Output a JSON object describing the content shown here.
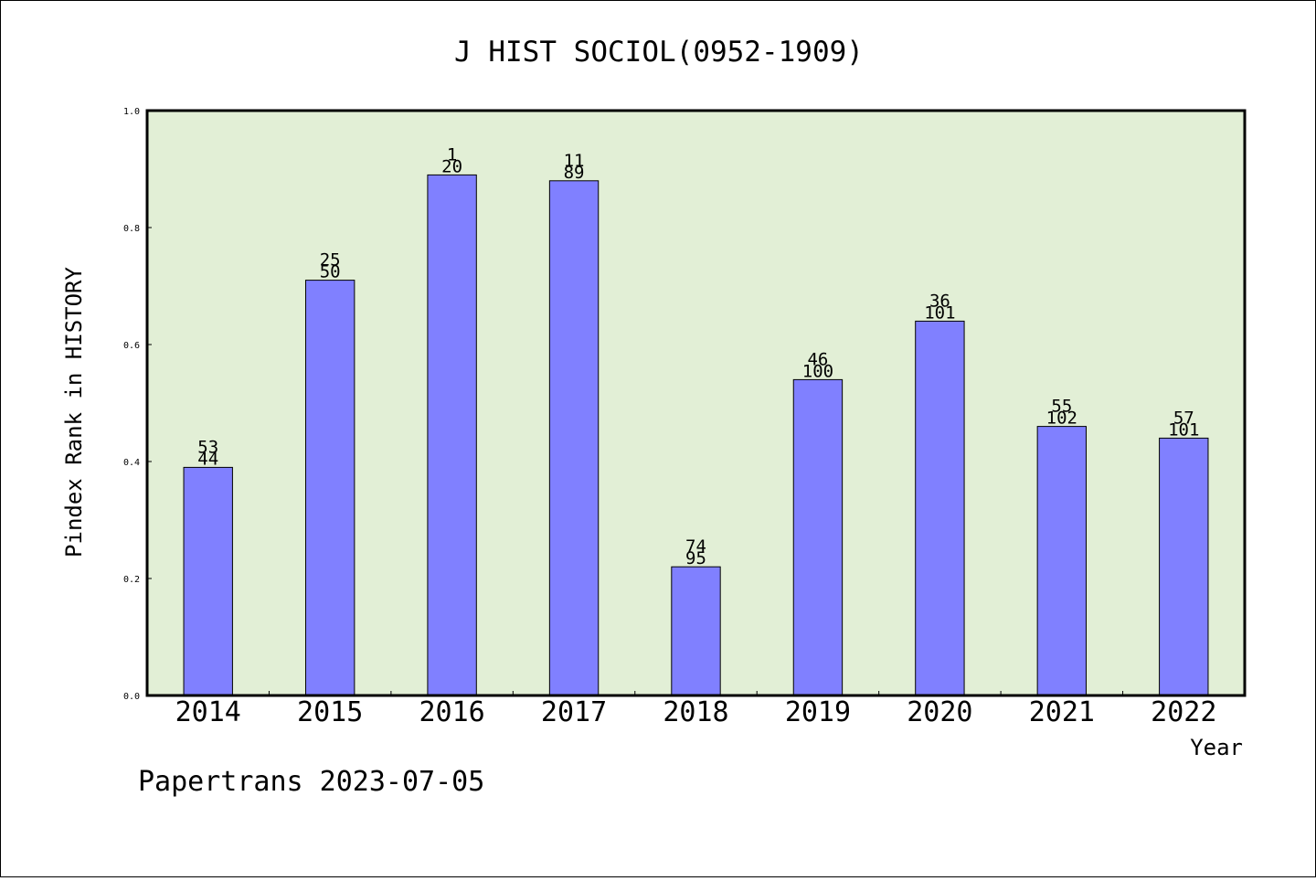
{
  "chart_data": {
    "type": "bar",
    "title": "J HIST SOCIOL(0952-1909)",
    "xlabel": "Year",
    "ylabel": "Pindex Rank in HISTORY",
    "ylim": [
      0,
      1.0
    ],
    "yticks": [
      "0.0",
      "0.2",
      "0.4",
      "0.6",
      "0.8",
      "1.0"
    ],
    "categories": [
      "2014",
      "2015",
      "2016",
      "2017",
      "2018",
      "2019",
      "2020",
      "2021",
      "2022"
    ],
    "values": [
      0.39,
      0.71,
      0.89,
      0.88,
      0.22,
      0.54,
      0.64,
      0.46,
      0.44
    ],
    "labels_top": [
      "53",
      "25",
      "1",
      "11",
      "74",
      "46",
      "36",
      "55",
      "57"
    ],
    "labels_bottom": [
      "44",
      "50",
      "20",
      "89",
      "95",
      "100",
      "101",
      "102",
      "101"
    ],
    "grid": false,
    "colors": {
      "bar": "#8080ff",
      "plot_bg": "#e2efd6",
      "bar_edge": "#000000"
    }
  },
  "footer": "Papertrans 2023-07-05"
}
